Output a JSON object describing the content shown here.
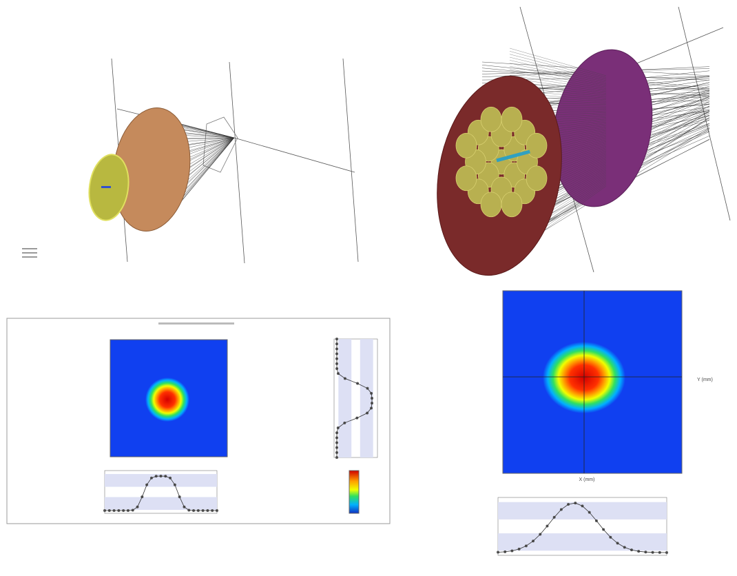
{
  "panels": [
    {
      "x_axis_label": "X (mm)",
      "y_axis_label": "Y (mm)"
    }
  ]
}
